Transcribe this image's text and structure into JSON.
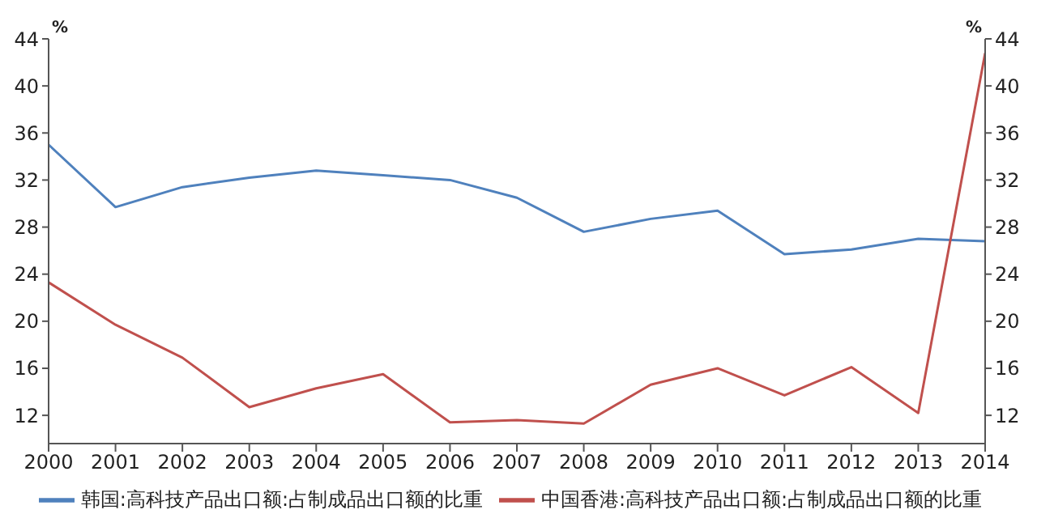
{
  "chart_data": {
    "type": "line",
    "ylabel": "%",
    "y2label": "%",
    "x": [
      2000,
      2001,
      2002,
      2003,
      2004,
      2005,
      2006,
      2007,
      2008,
      2009,
      2010,
      2011,
      2012,
      2013,
      2014
    ],
    "xlim": [
      2000,
      2014
    ],
    "xticks": [
      2000,
      2001,
      2002,
      2003,
      2004,
      2005,
      2006,
      2007,
      2008,
      2009,
      2010,
      2011,
      2012,
      2013,
      2014
    ],
    "ylim": [
      9.6,
      44
    ],
    "yticks": [
      12,
      16,
      20,
      24,
      28,
      32,
      36,
      40,
      44
    ],
    "y2lim": [
      9.6,
      44
    ],
    "y2ticks": [
      12,
      16,
      20,
      24,
      28,
      32,
      36,
      40,
      44
    ],
    "series": [
      {
        "name": "韩国:高科技产品出口额:占制成品出口额的比重",
        "color": "#4f81bd",
        "values": [
          35.0,
          29.7,
          31.4,
          32.2,
          32.8,
          32.4,
          32.0,
          30.5,
          27.6,
          28.7,
          29.4,
          25.7,
          26.1,
          27.0,
          26.8
        ]
      },
      {
        "name": "中国香港:高科技产品出口额:占制成品出口额的比重",
        "color": "#c0504d",
        "values": [
          23.3,
          19.7,
          16.9,
          12.7,
          14.3,
          15.5,
          11.4,
          11.6,
          11.3,
          14.6,
          16.0,
          13.7,
          16.1,
          12.2,
          42.8
        ]
      }
    ],
    "grid": false,
    "legend": "bottom",
    "marker": "none",
    "line_style": "solid"
  }
}
